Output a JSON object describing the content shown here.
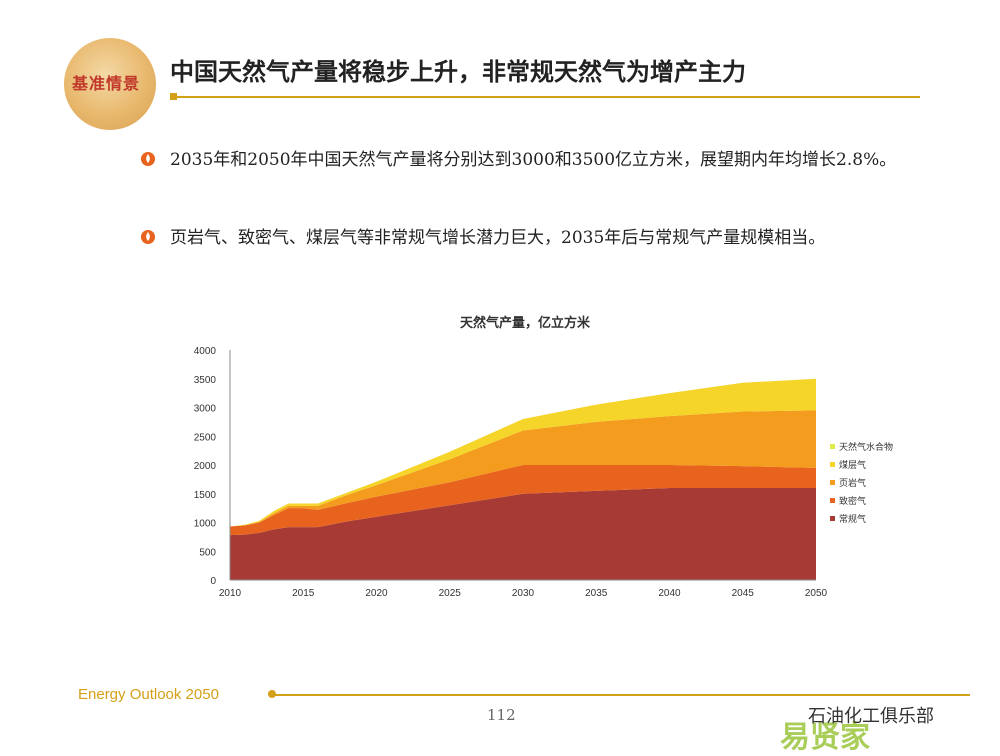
{
  "header": {
    "logo_text": "基准情景",
    "title": "中国天然气产量将稳步上升，非常规天然气为增产主力"
  },
  "bullets": [
    {
      "text": "2035年和2050年中国天然气产量将分别达到3000和3500亿立方米，展望期内年均增长2.8%。"
    },
    {
      "text": "页岩气、致密气、煤层气等非常规气增长潜力巨大，2035年后与常规气产量规模相当。"
    }
  ],
  "footer": {
    "left": "Energy Outlook 2050",
    "page": "112",
    "watermark": "石油化工俱乐部",
    "watermark_logo": "易贤家"
  },
  "chart_data": {
    "type": "area",
    "stacked": true,
    "title": "天然气产量，亿立方米",
    "x": [
      2010,
      2011,
      2012,
      2013,
      2014,
      2015,
      2016,
      2018,
      2020,
      2025,
      2030,
      2035,
      2040,
      2045,
      2050
    ],
    "x_ticks": [
      2010,
      2015,
      2020,
      2025,
      2030,
      2035,
      2040,
      2045,
      2050
    ],
    "y_ticks": [
      0,
      500,
      1000,
      1500,
      2000,
      2500,
      3000,
      3500,
      4000
    ],
    "ylim": [
      0,
      4000
    ],
    "series": [
      {
        "name": "常规气",
        "color": "#a83a35",
        "values": [
          780,
          790,
          820,
          880,
          920,
          920,
          920,
          1020,
          1100,
          1300,
          1500,
          1550,
          1600,
          1600,
          1600
        ]
      },
      {
        "name": "致密气",
        "color": "#e8641e",
        "values": [
          150,
          160,
          180,
          250,
          330,
          330,
          300,
          320,
          350,
          400,
          500,
          450,
          400,
          380,
          350
        ]
      },
      {
        "name": "页岩气",
        "color": "#f39c1e",
        "values": [
          0,
          0,
          10,
          30,
          40,
          40,
          70,
          140,
          200,
          400,
          600,
          750,
          850,
          950,
          1000
        ]
      },
      {
        "name": "煤层气",
        "color": "#f5d52a",
        "values": [
          0,
          10,
          20,
          40,
          40,
          40,
          40,
          40,
          60,
          130,
          200,
          300,
          400,
          500,
          550
        ]
      },
      {
        "name": "天然气水合物",
        "color": "#e0ec4a",
        "values": [
          0,
          0,
          0,
          0,
          0,
          0,
          0,
          0,
          0,
          0,
          0,
          0,
          0,
          0,
          0
        ]
      }
    ],
    "legend_position": "right"
  }
}
